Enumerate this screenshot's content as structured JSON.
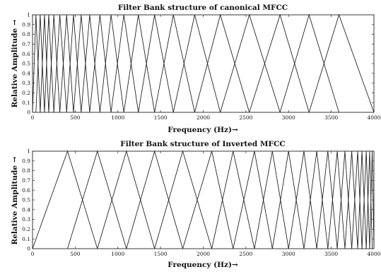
{
  "chart_data": [
    {
      "type": "line",
      "title": "Filter Bank structure of canonical MFCC",
      "xlabel": "Frequency (Hz)→",
      "ylabel": "Relative Amplitude →",
      "xlim": [
        0,
        4000
      ],
      "ylim": [
        0,
        1
      ],
      "x_ticks": [
        0,
        500,
        1000,
        1500,
        2000,
        2500,
        3000,
        3500,
        4000
      ],
      "y_ticks": [
        0,
        0.1,
        0.2,
        0.3,
        0.4,
        0.5,
        0.6,
        0.7,
        0.8,
        0.9,
        1
      ],
      "filter_shape": "triangular",
      "filter_edges_hz": [
        0,
        40,
        90,
        140,
        190,
        250,
        320,
        400,
        480,
        570,
        670,
        790,
        920,
        1070,
        1240,
        1430,
        1650,
        1900,
        2200,
        2540,
        2900,
        3240,
        3590,
        4000
      ],
      "grid": false
    },
    {
      "type": "line",
      "title": "Filter Bank structure of Inverted MFCC",
      "xlabel": "Frequency (Hz)→",
      "ylabel": "Relative Amplitude →",
      "xlim": [
        0,
        4000
      ],
      "ylim": [
        0,
        1
      ],
      "x_ticks": [
        0,
        500,
        1000,
        1500,
        2000,
        2500,
        3000,
        3500,
        4000
      ],
      "y_ticks": [
        0,
        0.1,
        0.2,
        0.3,
        0.4,
        0.5,
        0.6,
        0.7,
        0.8,
        0.9,
        1
      ],
      "filter_shape": "triangular",
      "filter_edges_hz": [
        0,
        410,
        760,
        1100,
        1430,
        1760,
        2100,
        2350,
        2600,
        2810,
        3000,
        3180,
        3330,
        3460,
        3570,
        3660,
        3740,
        3810,
        3860,
        3910,
        3950,
        3980,
        4000
      ],
      "grid": false
    }
  ]
}
